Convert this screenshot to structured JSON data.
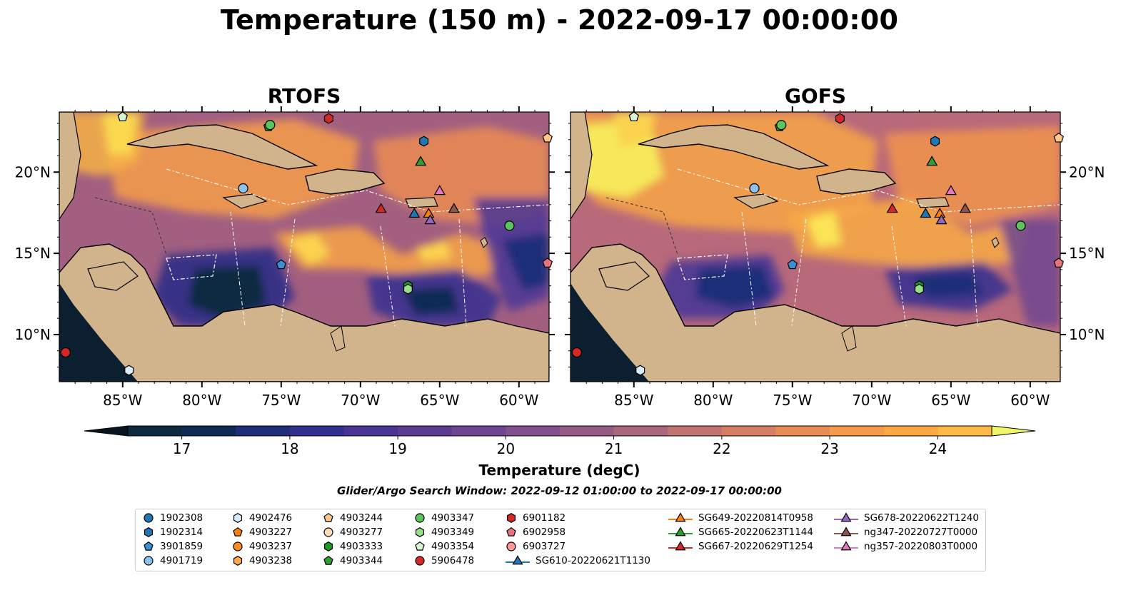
{
  "title": "Temperature (150 m) - 2022-09-17 00:00:00",
  "panels": [
    {
      "title": "RTOFS"
    },
    {
      "title": "GOFS"
    }
  ],
  "axes": {
    "lat_ticks": [
      "20°N",
      "15°N",
      "10°N"
    ],
    "lon_ticks": [
      "85°W",
      "80°W",
      "75°W",
      "70°W",
      "65°W",
      "60°W"
    ]
  },
  "colorbar": {
    "label": "Temperature (degC)",
    "ticks": [
      "17",
      "18",
      "19",
      "20",
      "21",
      "22",
      "23",
      "24"
    ],
    "range": [
      16.5,
      24.5
    ],
    "step": 0.5,
    "colors": [
      "#0d2a3f",
      "#0f2b55",
      "#1f2e78",
      "#332f8f",
      "#4a3596",
      "#5c3c93",
      "#6e4590",
      "#81508d",
      "#955b85",
      "#aa667c",
      "#c17372",
      "#d67e63",
      "#e88b55",
      "#f5994a",
      "#fca744",
      "#fdb947",
      "#fcd24f",
      "#f8ef5a"
    ],
    "extend_low": "#061520",
    "extend_high": "#f0f56a"
  },
  "search_window": "Glider/Argo Search Window: 2022-09-12 01:00:00 to 2022-09-17 00:00:00",
  "land_color": "#d2b48c",
  "shelf_color": "#98b6e0",
  "legend": [
    {
      "label": "1902308",
      "marker": "circle",
      "color": "#1f77b4"
    },
    {
      "label": "1902314",
      "marker": "hexagon",
      "color": "#1f77b4"
    },
    {
      "label": "3901859",
      "marker": "pentagon",
      "color": "#3b8fd4"
    },
    {
      "label": "4901719",
      "marker": "circle",
      "color": "#8ec1ea"
    },
    {
      "label": "4902476",
      "marker": "hexagon",
      "color": "#d9ecfa"
    },
    {
      "label": "4903227",
      "marker": "pentagon",
      "color": "#ff7f0e"
    },
    {
      "label": "4903237",
      "marker": "circle",
      "color": "#ff8c1a"
    },
    {
      "label": "4903238",
      "marker": "hexagon",
      "color": "#ffa94d"
    },
    {
      "label": "4903244",
      "marker": "pentagon",
      "color": "#ffc78a"
    },
    {
      "label": "4903277",
      "marker": "circle",
      "color": "#ffdcb8"
    },
    {
      "label": "4903333",
      "marker": "hexagon",
      "color": "#1e9a1e"
    },
    {
      "label": "4903344",
      "marker": "pentagon",
      "color": "#2ca02c"
    },
    {
      "label": "4903347",
      "marker": "circle",
      "color": "#5cc45c"
    },
    {
      "label": "4903349",
      "marker": "hexagon",
      "color": "#98df8a"
    },
    {
      "label": "4903354",
      "marker": "pentagon",
      "color": "#d6f5d0"
    },
    {
      "label": "5906478",
      "marker": "circle",
      "color": "#d62728"
    },
    {
      "label": "6901182",
      "marker": "hexagon",
      "color": "#d62728"
    },
    {
      "label": "6902958",
      "marker": "pentagon",
      "color": "#e8737a"
    },
    {
      "label": "6903727",
      "marker": "circle",
      "color": "#ff9896"
    },
    {
      "label": "SG610-20220621T1130",
      "marker": "triangle-line",
      "color": "#1f77b4"
    },
    {
      "label": "SG649-20220814T0958",
      "marker": "triangle-line",
      "color": "#ff7f0e"
    },
    {
      "label": "SG665-20220623T1144",
      "marker": "triangle-line",
      "color": "#2ca02c"
    },
    {
      "label": "SG667-20220629T1254",
      "marker": "triangle-line",
      "color": "#d62728"
    },
    {
      "label": "SG678-20220622T1240",
      "marker": "triangle-line",
      "color": "#9467bd"
    },
    {
      "label": "ng347-20220727T0000",
      "marker": "triangle-line",
      "color": "#8c564b"
    },
    {
      "label": "ng357-20220803T0000",
      "marker": "triangle-line",
      "color": "#e377c2"
    }
  ],
  "markers": [
    {
      "label": "5906478",
      "lon": -88.6,
      "lat": 8.9
    },
    {
      "label": "4902476",
      "lon": -84.6,
      "lat": 7.8
    },
    {
      "label": "4903354",
      "lon": -85.0,
      "lat": 23.4
    },
    {
      "label": "4903344",
      "lon": -75.8,
      "lat": 22.8
    },
    {
      "label": "4903347",
      "lon": -75.7,
      "lat": 22.9
    },
    {
      "label": "6901182",
      "lon": -72.0,
      "lat": 23.3
    },
    {
      "label": "1902314",
      "lon": -66.0,
      "lat": 21.9
    },
    {
      "label": "4903244",
      "lon": -58.2,
      "lat": 22.1
    },
    {
      "label": "4901719",
      "lon": -77.4,
      "lat": 19.0
    },
    {
      "label": "3901859",
      "lon": -75.0,
      "lat": 14.3
    },
    {
      "label": "6902958",
      "lon": -58.2,
      "lat": 14.4
    },
    {
      "label": "4903347",
      "lon": -60.6,
      "lat": 16.7
    },
    {
      "label": "4903333",
      "lon": -67.0,
      "lat": 13.0
    },
    {
      "label": "4903349",
      "lon": -67.0,
      "lat": 12.8
    },
    {
      "label": "SG665-20220623T1144",
      "lon": -66.2,
      "lat": 20.6
    },
    {
      "label": "SG667-20220629T1254",
      "lon": -68.7,
      "lat": 17.7
    },
    {
      "label": "SG610-20220621T1130",
      "lon": -66.6,
      "lat": 17.4
    },
    {
      "label": "SG649-20220814T0958",
      "lon": -65.7,
      "lat": 17.4
    },
    {
      "label": "SG678-20220622T1240",
      "lon": -65.6,
      "lat": 17.0
    },
    {
      "label": "ng347-20220727T0000",
      "lon": -64.1,
      "lat": 17.7
    },
    {
      "label": "ng357-20220803T0000",
      "lon": -65.0,
      "lat": 18.8
    }
  ]
}
